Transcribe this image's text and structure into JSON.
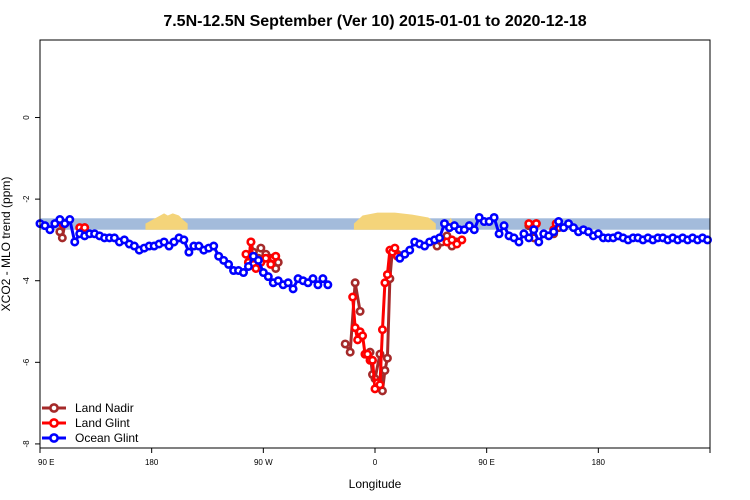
{
  "chart_data": {
    "type": "line",
    "title": "7.5N-12.5N September (Ver 10)   2015-01-01 to 2020-12-18",
    "xlabel": "Longitude",
    "ylabel": "XCO2 - MLO trend (ppm)",
    "xlim": [
      -90,
      180
    ],
    "ylim": [
      -8.1,
      1.9
    ],
    "x_ticks": [
      {
        "value": -90,
        "label": "90 E"
      },
      {
        "value": -45,
        "label": "180"
      },
      {
        "value": 0,
        "label": "90 W"
      },
      {
        "value": 45,
        "label": "0"
      },
      {
        "value": 90,
        "label": "90 E"
      },
      {
        "value": 135,
        "label": "180"
      }
    ],
    "y_ticks": [
      {
        "value": -8,
        "label": "-8"
      },
      {
        "value": -6,
        "label": "-6"
      },
      {
        "value": -4,
        "label": "-4"
      },
      {
        "value": -2,
        "label": "-2"
      },
      {
        "value": 0,
        "label": "0"
      }
    ],
    "grid": false,
    "legend_position": "bottom-left",
    "background_band": {
      "ocean_color": "#a3bbdb",
      "land_color": "#f4d47a",
      "y_range": [
        -2.75,
        -2.47
      ],
      "land_segments": [
        {
          "x": [
            -47.5,
            -43,
            -40,
            -38.5,
            -36.5,
            -34,
            -32.5,
            -30.5
          ],
          "top": [
            -2.6,
            -2.45,
            -2.35,
            -2.4,
            -2.35,
            -2.4,
            -2.5,
            -2.6
          ]
        },
        {
          "x": [
            36.5,
            40,
            46,
            53,
            60,
            66.5,
            69.5
          ],
          "top": [
            -2.6,
            -2.4,
            -2.33,
            -2.33,
            -2.38,
            -2.45,
            -2.6
          ]
        },
        {
          "x": [
            74.5,
            75.5,
            76.5
          ],
          "top": [
            -2.6,
            -2.45,
            -2.6
          ]
        }
      ]
    },
    "series": [
      {
        "name": "Land Nadir",
        "color": "#a52a2a",
        "segments": [
          {
            "x": [
              -82,
              -81,
              -80
            ],
            "y": [
              -2.8,
              -2.95,
              -2.6
            ]
          },
          {
            "x": [
              -73,
              -72
            ],
            "y": [
              -2.85,
              -2.7
            ]
          },
          {
            "x": [
              -6,
              -5,
              -4,
              -3,
              -2
            ],
            "y": [
              -3.55,
              -3.05,
              -3.3,
              -3.5,
              -3.45
            ]
          },
          {
            "x": [
              -1,
              1,
              3,
              4,
              5,
              6
            ],
            "y": [
              -3.2,
              -3.35,
              -3.45,
              -3.55,
              -3.7,
              -3.55
            ]
          },
          {
            "x": [
              33,
              35,
              37,
              39
            ],
            "y": [
              -5.55,
              -5.75,
              -4.05,
              -4.75
            ]
          },
          {
            "x": [
              41,
              43,
              44,
              45,
              47,
              48,
              49,
              50,
              51,
              52,
              54
            ],
            "y": [
              -5.8,
              -5.75,
              -6.3,
              -6.4,
              -5.8,
              -6.7,
              -6.2,
              -5.9,
              -3.95,
              -3.25,
              -3.35
            ]
          },
          {
            "x": [
              70,
              72,
              74,
              76,
              78
            ],
            "y": [
              -3.15,
              -3.05,
              -2.9,
              -3.15,
              -3.05
            ]
          },
          {
            "x": [
              107,
              109,
              110
            ],
            "y": [
              -2.65,
              -2.95,
              -2.6
            ]
          },
          {
            "x": [
              117,
              119
            ],
            "y": [
              -2.85,
              -2.7
            ]
          }
        ]
      },
      {
        "name": "Land Glint",
        "color": "#ff0000",
        "segments": [
          {
            "x": [
              -81,
              -80
            ],
            "y": [
              -2.6,
              -2.6
            ]
          },
          {
            "x": [
              -74,
              -73,
              -72
            ],
            "y": [
              -2.7,
              -2.8,
              -2.7
            ]
          },
          {
            "x": [
              -7,
              -6,
              -5,
              -4,
              -3,
              -2
            ],
            "y": [
              -3.35,
              -3.55,
              -3.05,
              -3.6,
              -3.7,
              -3.5
            ]
          },
          {
            "x": [
              -1,
              1,
              3,
              4,
              5
            ],
            "y": [
              -3.55,
              -3.45,
              -3.6,
              -3.45,
              -3.4
            ]
          },
          {
            "x": [
              36,
              37,
              38,
              39,
              40,
              41,
              42,
              43,
              44,
              45,
              46,
              47,
              48,
              49,
              50,
              51,
              52,
              53,
              54
            ],
            "y": [
              -4.4,
              -5.15,
              -5.45,
              -5.25,
              -5.35,
              -5.8,
              -5.8,
              -5.95,
              -5.95,
              -6.65,
              -6.5,
              -6.55,
              -5.2,
              -4.05,
              -3.85,
              -3.25,
              -3.3,
              -3.2,
              -3.4
            ]
          },
          {
            "x": [
              74,
              76,
              78,
              80
            ],
            "y": [
              -3.05,
              -3.0,
              -3.1,
              -3.0
            ]
          },
          {
            "x": [
              107,
              109,
              110
            ],
            "y": [
              -2.6,
              -2.7,
              -2.6
            ]
          },
          {
            "x": [
              117,
              118
            ],
            "y": [
              -2.75,
              -2.6
            ]
          }
        ]
      },
      {
        "name": "Ocean Glint",
        "color": "#0000ff",
        "segments": [
          {
            "x": [
              -90,
              -88,
              -86,
              -84,
              -82,
              -80,
              -78,
              -76,
              -74,
              -72,
              -70,
              -68,
              -66,
              -64,
              -62,
              -60,
              -58,
              -56,
              -54,
              -52,
              -50,
              -48,
              -46,
              -44,
              -42,
              -40,
              -38,
              -36,
              -34,
              -32,
              -30,
              -28,
              -26,
              -24,
              -22,
              -20,
              -18,
              -16,
              -14,
              -12,
              -10,
              -8,
              -6,
              -4,
              -2,
              0,
              2,
              4,
              6,
              8,
              10,
              12,
              14,
              16,
              18,
              20,
              22,
              24,
              26
            ],
            "y": [
              -2.6,
              -2.65,
              -2.75,
              -2.6,
              -2.5,
              -2.6,
              -2.5,
              -3.05,
              -2.85,
              -2.9,
              -2.85,
              -2.85,
              -2.9,
              -2.95,
              -2.95,
              -2.95,
              -3.05,
              -3.0,
              -3.1,
              -3.15,
              -3.25,
              -3.2,
              -3.15,
              -3.15,
              -3.1,
              -3.05,
              -3.15,
              -3.05,
              -2.95,
              -3.0,
              -3.3,
              -3.15,
              -3.15,
              -3.25,
              -3.2,
              -3.15,
              -3.4,
              -3.5,
              -3.6,
              -3.75,
              -3.75,
              -3.8,
              -3.65,
              -3.4,
              -3.5,
              -3.8,
              -3.9,
              -4.05,
              -4.0,
              -4.1,
              -4.05,
              -4.2,
              -3.95,
              -4.0,
              -4.05,
              -3.95,
              -4.1,
              -3.95,
              -4.1
            ]
          },
          {
            "x": [
              55,
              57,
              59,
              61,
              63,
              65,
              67,
              69,
              71,
              73,
              75,
              77,
              79,
              81,
              83,
              85,
              87,
              89,
              91,
              93,
              95,
              97,
              99,
              101,
              103,
              105,
              107,
              109,
              111,
              113,
              115,
              117,
              119,
              121,
              123,
              125,
              127,
              129,
              131,
              133,
              135,
              137,
              139,
              141,
              143,
              145,
              147,
              149,
              151,
              153,
              155,
              157,
              159,
              161,
              163,
              165,
              167,
              169,
              171,
              173,
              175,
              177,
              179
            ],
            "y": [
              -3.45,
              -3.35,
              -3.25,
              -3.05,
              -3.1,
              -3.15,
              -3.05,
              -3.0,
              -2.95,
              -2.6,
              -2.7,
              -2.65,
              -2.75,
              -2.75,
              -2.65,
              -2.75,
              -2.45,
              -2.55,
              -2.55,
              -2.45,
              -2.85,
              -2.65,
              -2.9,
              -2.95,
              -3.05,
              -2.85,
              -2.95,
              -2.75,
              -3.05,
              -2.85,
              -2.9,
              -2.8,
              -2.55,
              -2.7,
              -2.6,
              -2.7,
              -2.8,
              -2.75,
              -2.8,
              -2.9,
              -2.85,
              -2.95,
              -2.95,
              -2.95,
              -2.9,
              -2.95,
              -3.0,
              -2.95,
              -2.95,
              -3.0,
              -2.95,
              -3.0,
              -2.95,
              -2.95,
              -3.0,
              -2.95,
              -3.0,
              -2.95,
              -3.0,
              -2.95,
              -3.0,
              -2.95,
              -3.0
            ]
          }
        ]
      }
    ]
  }
}
